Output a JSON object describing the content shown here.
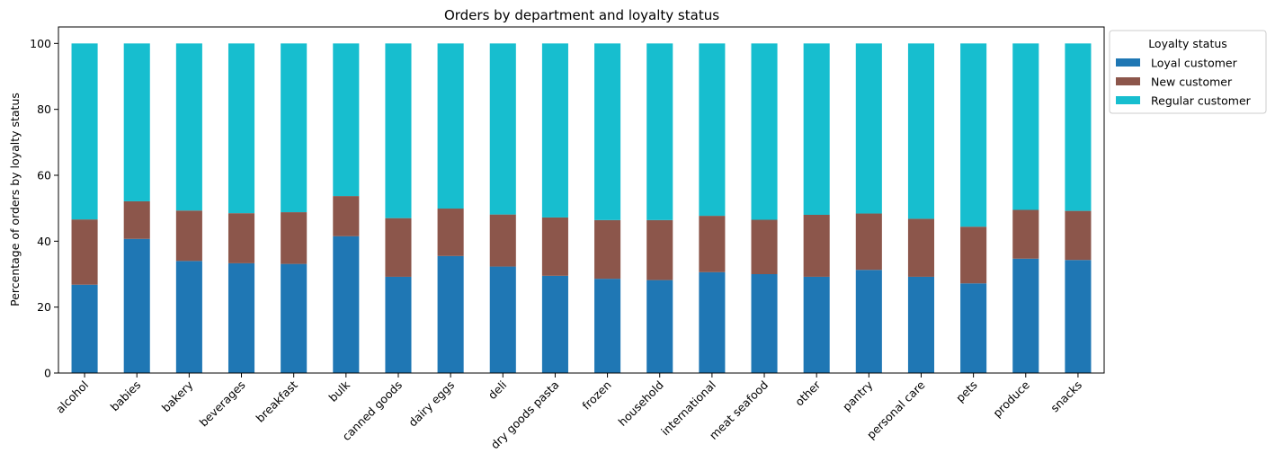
{
  "chart_data": {
    "type": "bar",
    "stacked": true,
    "title": "Orders by department and loyalty status",
    "xlabel": "",
    "ylabel": "Percentage of orders by loyalty status",
    "ylim": [
      0,
      105
    ],
    "yticks": [
      0,
      20,
      40,
      60,
      80,
      100
    ],
    "grid": false,
    "legend": {
      "title": "Loyalty status",
      "placement": "outside-top-right"
    },
    "categories": [
      "alcohol",
      "babies",
      "bakery",
      "beverages",
      "breakfast",
      "bulk",
      "canned goods",
      "dairy eggs",
      "deli",
      "dry goods pasta",
      "frozen",
      "household",
      "international",
      "meat seafood",
      "other",
      "pantry",
      "personal care",
      "pets",
      "produce",
      "snacks"
    ],
    "series": [
      {
        "name": "Loyal customer",
        "color": "#1f77b4",
        "values": [
          26.8,
          40.7,
          34.0,
          33.3,
          33.1,
          41.5,
          29.2,
          35.5,
          32.3,
          29.5,
          28.6,
          28.2,
          30.6,
          30.0,
          29.2,
          31.3,
          29.2,
          27.2,
          34.7,
          34.3
        ]
      },
      {
        "name": "New customer",
        "color": "#8c564b",
        "values": [
          19.8,
          11.4,
          15.3,
          15.2,
          15.7,
          12.2,
          17.8,
          14.4,
          15.8,
          17.7,
          17.8,
          18.2,
          17.1,
          16.5,
          18.8,
          17.1,
          17.6,
          17.2,
          14.8,
          14.9
        ]
      },
      {
        "name": "Regular customer",
        "color": "#17becf",
        "values": [
          53.4,
          47.9,
          50.7,
          51.5,
          51.2,
          46.3,
          53.0,
          50.1,
          51.9,
          52.8,
          53.6,
          53.6,
          52.3,
          53.5,
          52.0,
          51.6,
          53.2,
          55.6,
          50.5,
          50.8
        ]
      }
    ]
  }
}
